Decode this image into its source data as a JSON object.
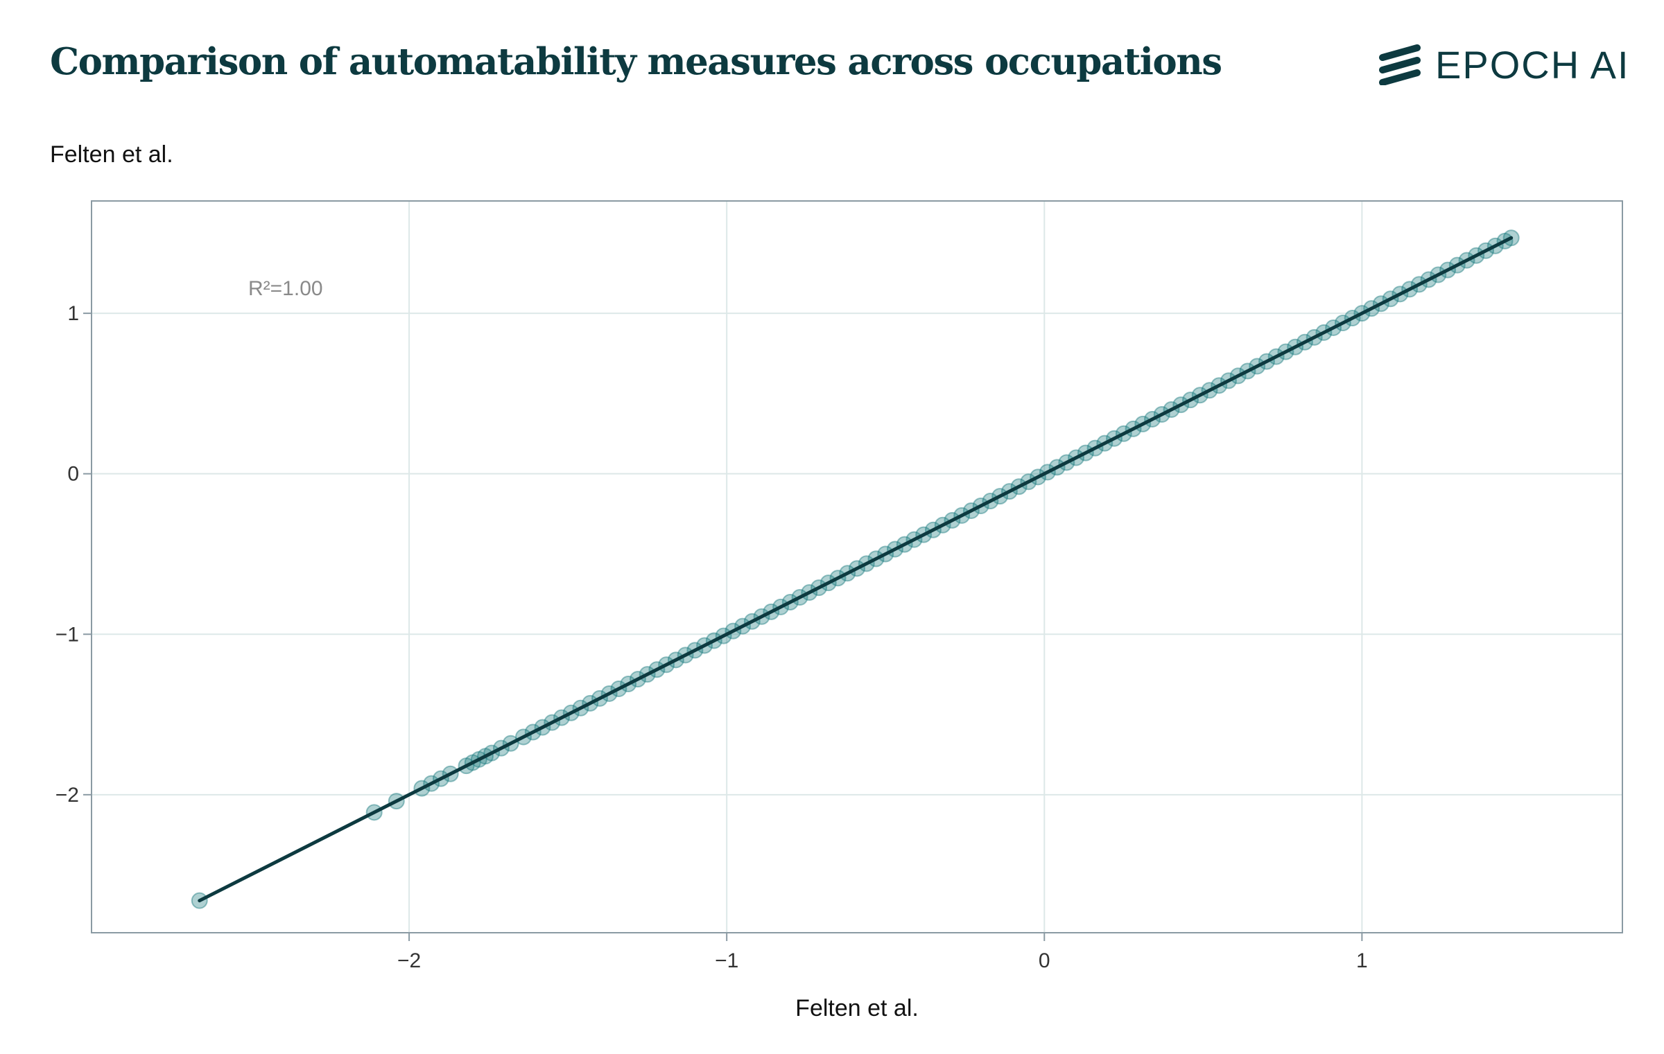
{
  "header": {
    "title": "Comparison of automatability measures across occupations",
    "brand": "EPOCH AI"
  },
  "chart_data": {
    "type": "scatter",
    "title": "Comparison of automatability measures across occupations",
    "xlabel": "Felten et al.",
    "ylabel": "Felten et al.",
    "xlim": [
      -3.0,
      1.82
    ],
    "ylim": [
      -2.86,
      1.7
    ],
    "xticks": [
      -2,
      -1,
      0,
      1
    ],
    "yticks": [
      -2,
      -1,
      0,
      1
    ],
    "grid": true,
    "annotation": "R²=1.00",
    "fit_line": {
      "slope": 1,
      "intercept": 0,
      "x_range": [
        -2.66,
        1.47
      ]
    },
    "point_color": "#1a7a7e",
    "line_color": "#0d3a40",
    "series": [
      {
        "x": [
          -2.66,
          -2.11,
          -2.04,
          -1.96,
          -1.93,
          -1.9,
          -1.87,
          -1.82,
          -1.8,
          -1.78,
          -1.76,
          -1.74,
          -1.71,
          -1.68,
          -1.64,
          -1.61,
          -1.58,
          -1.55,
          -1.52,
          -1.49,
          -1.46,
          -1.43,
          -1.4,
          -1.37,
          -1.34,
          -1.31,
          -1.28,
          -1.25,
          -1.22,
          -1.19,
          -1.16,
          -1.13,
          -1.1,
          -1.07,
          -1.04,
          -1.01,
          -0.98,
          -0.95,
          -0.92,
          -0.89,
          -0.86,
          -0.83,
          -0.8,
          -0.77,
          -0.74,
          -0.71,
          -0.68,
          -0.65,
          -0.62,
          -0.59,
          -0.56,
          -0.53,
          -0.5,
          -0.47,
          -0.44,
          -0.41,
          -0.38,
          -0.35,
          -0.32,
          -0.29,
          -0.26,
          -0.23,
          -0.2,
          -0.17,
          -0.14,
          -0.11,
          -0.08,
          -0.05,
          -0.02,
          0.01,
          0.04,
          0.07,
          0.1,
          0.13,
          0.16,
          0.19,
          0.22,
          0.25,
          0.28,
          0.31,
          0.34,
          0.37,
          0.4,
          0.43,
          0.46,
          0.49,
          0.52,
          0.55,
          0.58,
          0.61,
          0.64,
          0.67,
          0.7,
          0.73,
          0.76,
          0.79,
          0.82,
          0.85,
          0.88,
          0.91,
          0.94,
          0.97,
          1.0,
          1.03,
          1.06,
          1.09,
          1.12,
          1.15,
          1.18,
          1.21,
          1.24,
          1.27,
          1.3,
          1.33,
          1.36,
          1.39,
          1.42,
          1.45,
          1.47
        ],
        "y": [
          -2.66,
          -2.11,
          -2.04,
          -1.96,
          -1.93,
          -1.9,
          -1.87,
          -1.82,
          -1.8,
          -1.78,
          -1.76,
          -1.74,
          -1.71,
          -1.68,
          -1.64,
          -1.61,
          -1.58,
          -1.55,
          -1.52,
          -1.49,
          -1.46,
          -1.43,
          -1.4,
          -1.37,
          -1.34,
          -1.31,
          -1.28,
          -1.25,
          -1.22,
          -1.19,
          -1.16,
          -1.13,
          -1.1,
          -1.07,
          -1.04,
          -1.01,
          -0.98,
          -0.95,
          -0.92,
          -0.89,
          -0.86,
          -0.83,
          -0.8,
          -0.77,
          -0.74,
          -0.71,
          -0.68,
          -0.65,
          -0.62,
          -0.59,
          -0.56,
          -0.53,
          -0.5,
          -0.47,
          -0.44,
          -0.41,
          -0.38,
          -0.35,
          -0.32,
          -0.29,
          -0.26,
          -0.23,
          -0.2,
          -0.17,
          -0.14,
          -0.11,
          -0.08,
          -0.05,
          -0.02,
          0.01,
          0.04,
          0.07,
          0.1,
          0.13,
          0.16,
          0.19,
          0.22,
          0.25,
          0.28,
          0.31,
          0.34,
          0.37,
          0.4,
          0.43,
          0.46,
          0.49,
          0.52,
          0.55,
          0.58,
          0.61,
          0.64,
          0.67,
          0.7,
          0.73,
          0.76,
          0.79,
          0.82,
          0.85,
          0.88,
          0.91,
          0.94,
          0.97,
          1.0,
          1.03,
          1.06,
          1.09,
          1.12,
          1.15,
          1.18,
          1.21,
          1.24,
          1.27,
          1.3,
          1.33,
          1.36,
          1.39,
          1.42,
          1.45,
          1.47
        ]
      }
    ]
  }
}
